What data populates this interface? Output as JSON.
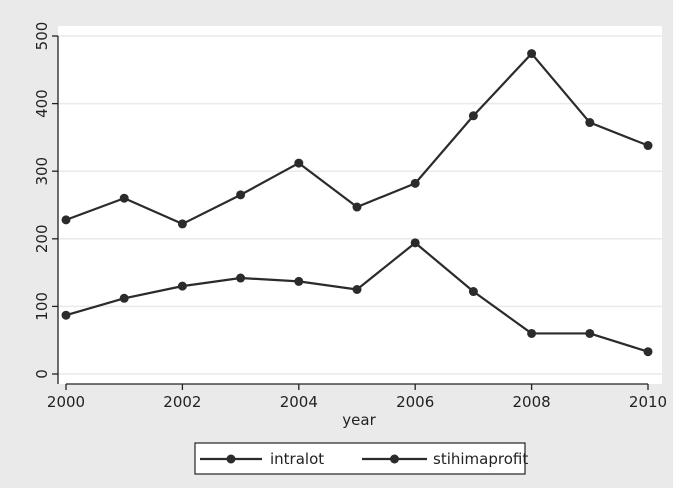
{
  "chart_data": {
    "type": "line",
    "title": "",
    "xlabel": "year",
    "ylabel": "",
    "x": [
      2000,
      2001,
      2002,
      2003,
      2004,
      2005,
      2006,
      2007,
      2008,
      2009,
      2010
    ],
    "series": [
      {
        "name": "intralot",
        "values": [
          228,
          260,
          222,
          265,
          312,
          247,
          282,
          382,
          474,
          372,
          338
        ]
      },
      {
        "name": "stihimaprofit",
        "values": [
          87,
          112,
          130,
          142,
          137,
          125,
          194,
          122,
          60,
          60,
          33
        ]
      }
    ],
    "xlim": [
      2000,
      2010
    ],
    "ylim": [
      0,
      500
    ],
    "xticks": [
      2000,
      2002,
      2004,
      2006,
      2008,
      2010
    ],
    "yticks": [
      0,
      100,
      200,
      300,
      400,
      500
    ],
    "grid": true,
    "legend_position": "bottom-center",
    "colors": {
      "background": "#eaeaea",
      "plot_background": "#ffffff",
      "grid": "#eaeaea",
      "line": "#2b2b2b",
      "axis": "#222222"
    }
  }
}
